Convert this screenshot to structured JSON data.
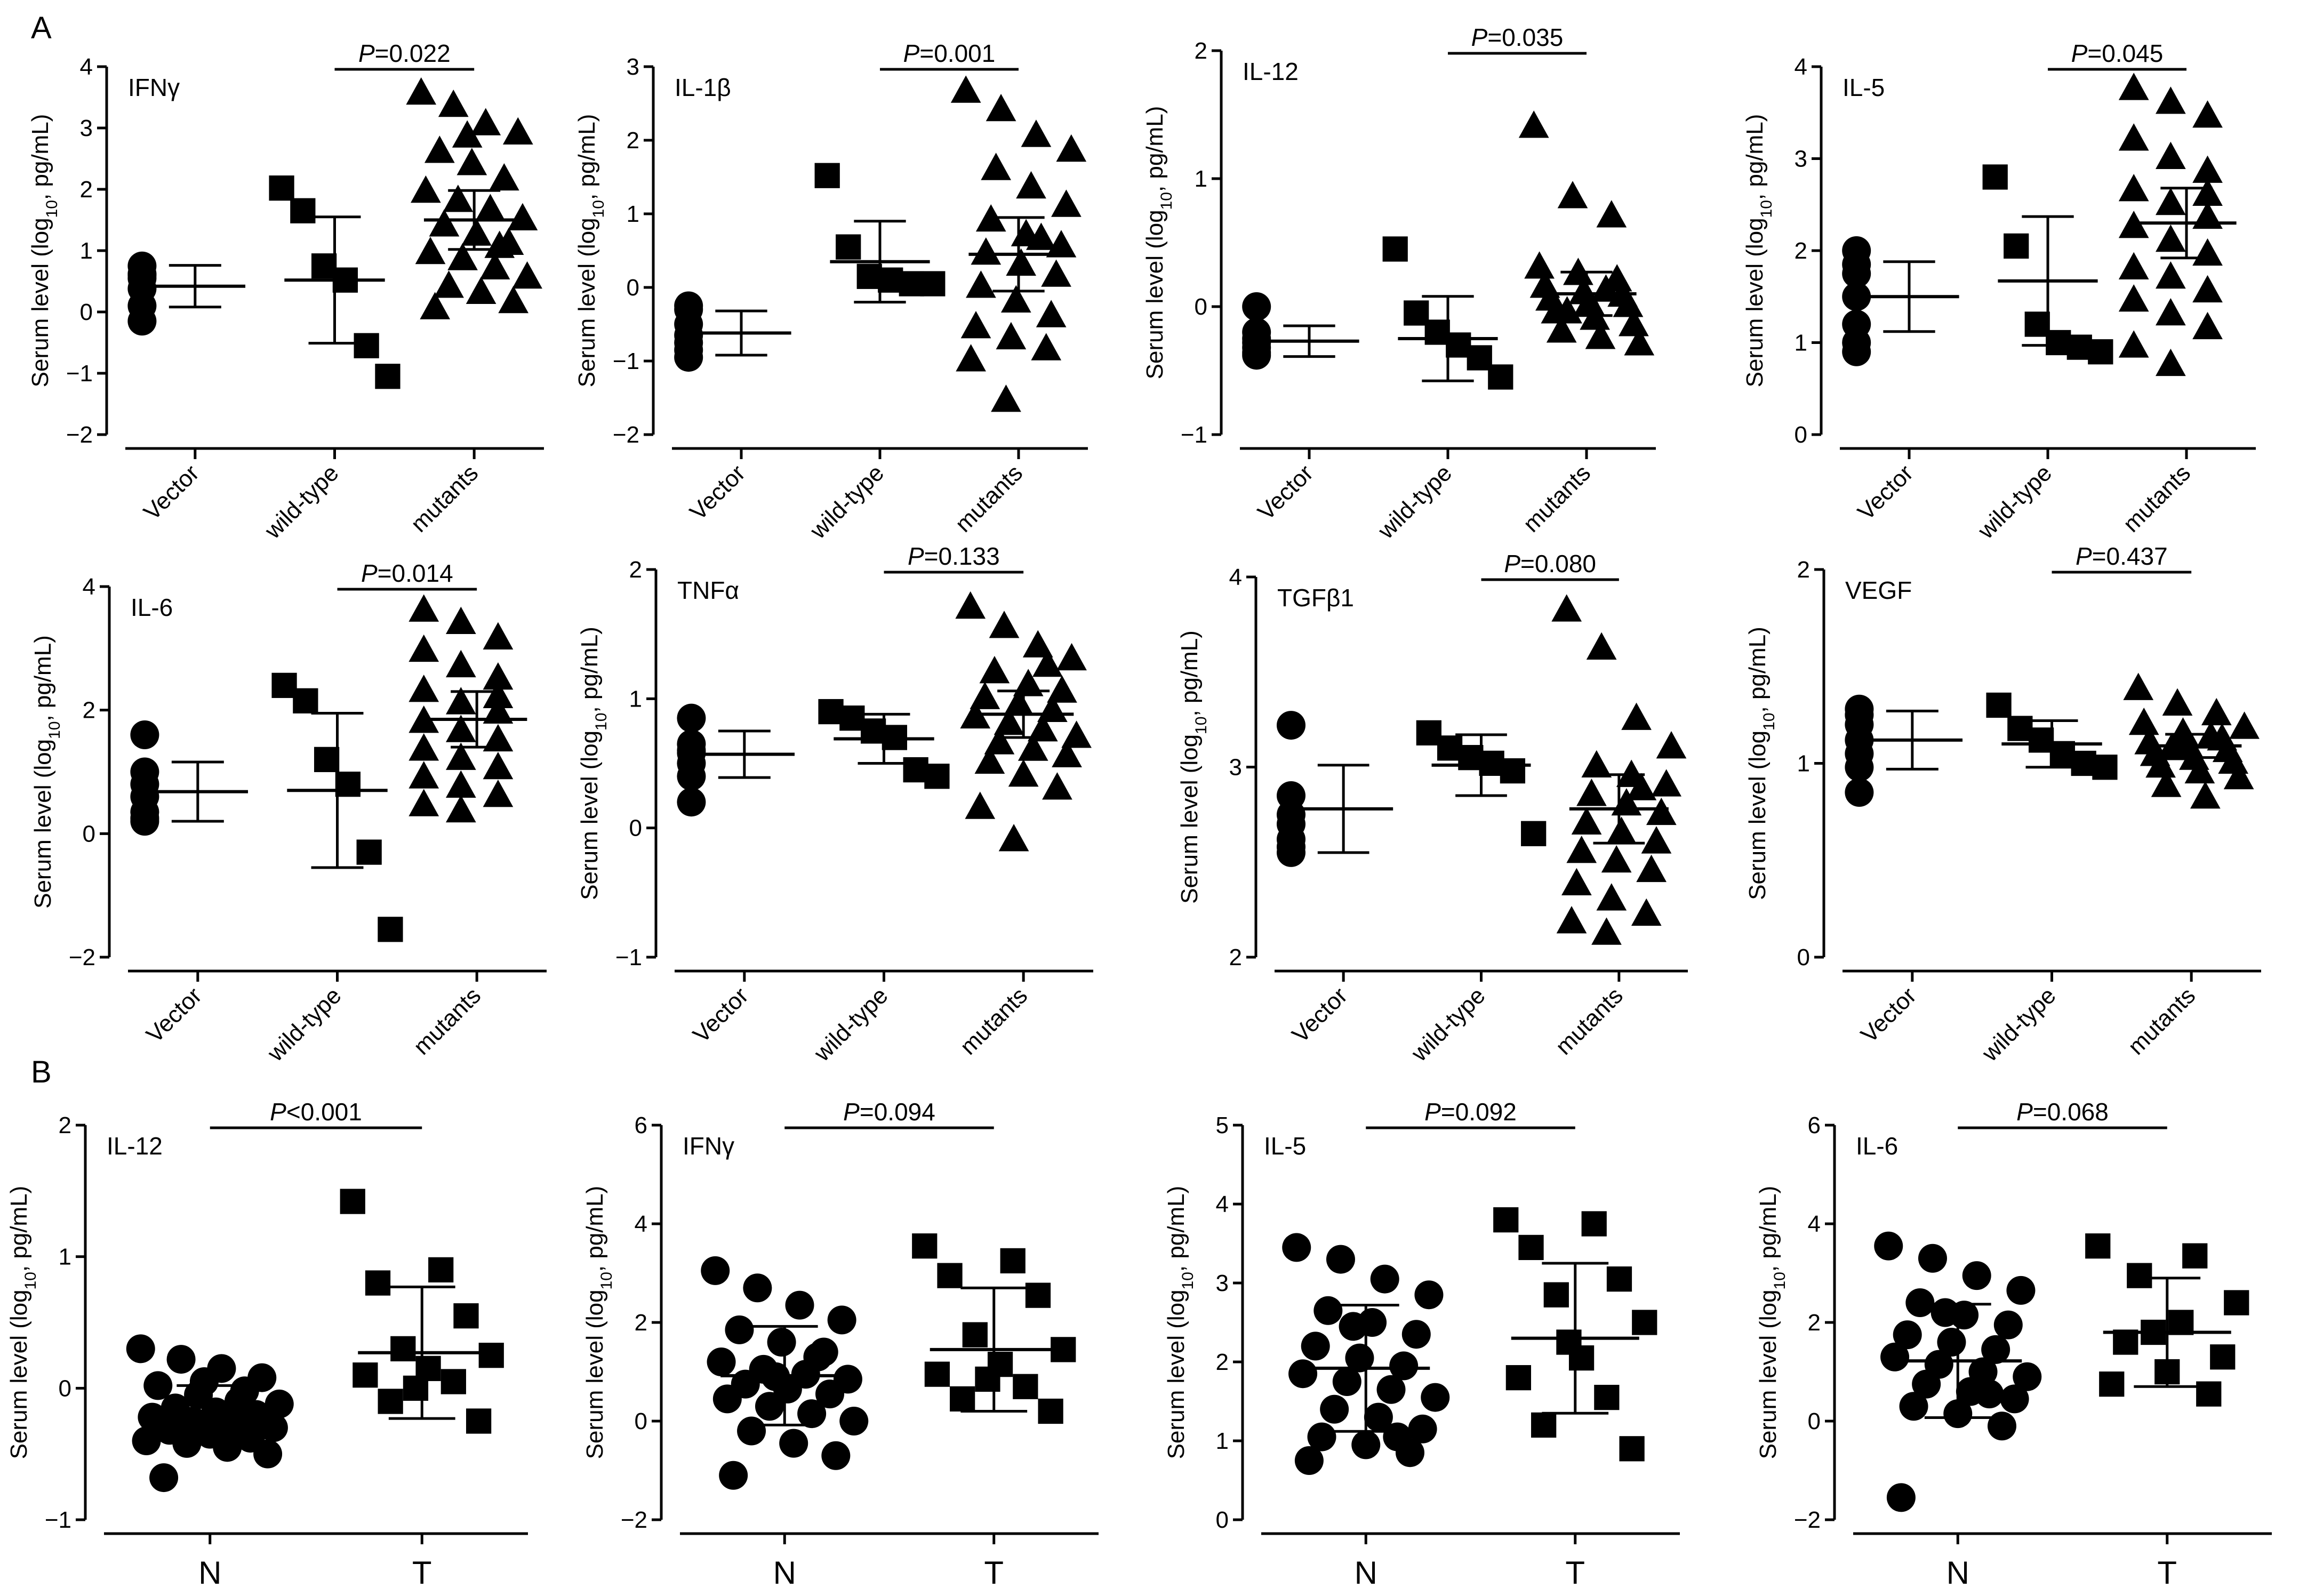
{
  "panel_letters": [
    "A",
    "B"
  ],
  "axis_label_main": "Serum level (log",
  "axis_label_sub": "10",
  "axis_label_tail": ", pg/mL)",
  "colors": {
    "ink": "#000000",
    "background": "#ffffff"
  },
  "chart_data": [
    {
      "panel": "A",
      "type": "scatter",
      "title": "IFNγ",
      "ylabel": "Serum level (log10, pg/mL)",
      "ylim": [
        -2,
        4
      ],
      "yticks": [
        -2,
        -1,
        0,
        1,
        2,
        3,
        4
      ],
      "yticklabels": [
        "−2",
        "−1",
        "0",
        "1",
        "2",
        "3",
        "4"
      ],
      "categories": [
        "Vector",
        "wild-type",
        "mutants"
      ],
      "markers": [
        "circle",
        "square",
        "triangle"
      ],
      "p_label": "P",
      "p_text": "=0.022",
      "p_groups": [
        1,
        2
      ],
      "series": [
        {
          "name": "Vector",
          "mean": 0.42,
          "sd": 0.34,
          "values": [
            0.75,
            0.55,
            0.6,
            0.38,
            0.1,
            -0.15,
            0.62
          ]
        },
        {
          "name": "wild-type",
          "mean": 0.52,
          "sd": 1.03,
          "values": [
            2.02,
            1.65,
            0.75,
            0.52,
            -0.55,
            -1.05
          ]
        },
        {
          "name": "mutants",
          "mean": 1.5,
          "sd": 0.48,
          "values": [
            3.55,
            3.35,
            3.05,
            2.9,
            2.6,
            2.4,
            2.15,
            1.95,
            1.8,
            1.65,
            1.5,
            1.4,
            1.25,
            1.1,
            0.95,
            0.85,
            0.7,
            0.55,
            0.4,
            0.3,
            0.15,
            0.05,
            2.85,
            1.05
          ]
        }
      ]
    },
    {
      "panel": "A",
      "type": "scatter",
      "title": "IL-1β",
      "ylabel": "Serum level (log10, pg/mL)",
      "ylim": [
        -2,
        3
      ],
      "yticks": [
        -2,
        -1,
        0,
        1,
        2,
        3
      ],
      "yticklabels": [
        "−2",
        "−1",
        "0",
        "1",
        "2",
        "3"
      ],
      "categories": [
        "Vector",
        "wild-type",
        "mutants"
      ],
      "markers": [
        "circle",
        "square",
        "triangle"
      ],
      "p_label": "P",
      "p_text": "=0.001",
      "p_groups": [
        1,
        2
      ],
      "series": [
        {
          "name": "Vector",
          "mean": -0.62,
          "sd": 0.3,
          "values": [
            -0.25,
            -0.3,
            -0.5,
            -0.65,
            -0.75,
            -0.85,
            -0.95
          ]
        },
        {
          "name": "wild-type",
          "mean": 0.35,
          "sd": 0.55,
          "values": [
            1.52,
            0.55,
            0.15,
            0.1,
            0.05,
            0.05
          ]
        },
        {
          "name": "mutants",
          "mean": 0.45,
          "sd": 0.5,
          "values": [
            2.65,
            2.4,
            2.05,
            1.85,
            1.6,
            1.35,
            1.1,
            0.9,
            0.7,
            0.55,
            0.45,
            0.3,
            0.15,
            0.0,
            -0.2,
            -0.4,
            -0.55,
            -0.7,
            -0.85,
            -1.0,
            -1.55,
            0.65
          ]
        }
      ]
    },
    {
      "panel": "A",
      "type": "scatter",
      "title": "IL-12",
      "ylabel": "Serum level (log10, pg/mL)",
      "ylim": [
        -1,
        2
      ],
      "yticks": [
        -1,
        0,
        1,
        2
      ],
      "yticklabels": [
        "−1",
        "0",
        "1",
        "2"
      ],
      "categories": [
        "Vector",
        "wild-type",
        "mutants"
      ],
      "markers": [
        "circle",
        "square",
        "triangle"
      ],
      "p_label": "P",
      "p_text": "=0.035",
      "p_groups": [
        1,
        2
      ],
      "series": [
        {
          "name": "Vector",
          "mean": -0.27,
          "sd": 0.12,
          "values": [
            0.0,
            -0.2,
            -0.25,
            -0.28,
            -0.32,
            -0.36,
            -0.38
          ]
        },
        {
          "name": "wild-type",
          "mean": -0.25,
          "sd": 0.33,
          "values": [
            0.45,
            -0.05,
            -0.2,
            -0.3,
            -0.4,
            -0.55
          ]
        },
        {
          "name": "mutants",
          "mean": 0.1,
          "sd": 0.17,
          "values": [
            1.4,
            0.85,
            0.7,
            0.3,
            0.25,
            0.2,
            0.15,
            0.1,
            0.08,
            0.05,
            0.02,
            0.0,
            -0.05,
            -0.1,
            -0.15,
            -0.2,
            -0.25,
            -0.3,
            -0.05,
            0.12
          ]
        }
      ]
    },
    {
      "panel": "A",
      "type": "scatter",
      "title": "IL-5",
      "ylabel": "Serum level (log10, pg/mL)",
      "ylim": [
        0,
        4
      ],
      "yticks": [
        0,
        1,
        2,
        3,
        4
      ],
      "yticklabels": [
        "0",
        "1",
        "2",
        "3",
        "4"
      ],
      "categories": [
        "Vector",
        "wild-type",
        "mutants"
      ],
      "markers": [
        "circle",
        "square",
        "triangle"
      ],
      "p_label": "P",
      "p_text": "=0.045",
      "p_groups": [
        1,
        2
      ],
      "series": [
        {
          "name": "Vector",
          "mean": 1.5,
          "sd": 0.38,
          "values": [
            2.0,
            1.85,
            1.75,
            1.5,
            1.2,
            1.0,
            0.9
          ]
        },
        {
          "name": "wild-type",
          "mean": 1.67,
          "sd": 0.7,
          "values": [
            2.8,
            2.05,
            1.2,
            1.0,
            0.95,
            0.9
          ]
        },
        {
          "name": "mutants",
          "mean": 2.3,
          "sd": 0.38,
          "values": [
            3.75,
            3.6,
            3.45,
            3.2,
            3.0,
            2.85,
            2.65,
            2.5,
            2.35,
            2.25,
            2.1,
            1.95,
            1.8,
            1.7,
            1.55,
            1.45,
            1.3,
            1.15,
            0.95,
            0.75,
            2.6
          ]
        }
      ]
    },
    {
      "panel": "A",
      "type": "scatter",
      "title": "IL-6",
      "ylabel": "Serum level (log10, pg/mL)",
      "ylim": [
        -2,
        4
      ],
      "yticks": [
        -2,
        0,
        2,
        4
      ],
      "yticklabels": [
        "−2",
        "0",
        "2",
        "4"
      ],
      "categories": [
        "Vector",
        "wild-type",
        "mutants"
      ],
      "markers": [
        "circle",
        "square",
        "triangle"
      ],
      "p_label": "P",
      "p_text": "=0.014",
      "p_groups": [
        1,
        2
      ],
      "series": [
        {
          "name": "Vector",
          "mean": 0.68,
          "sd": 0.48,
          "values": [
            1.6,
            1.0,
            0.8,
            0.6,
            0.35,
            0.25,
            0.2
          ]
        },
        {
          "name": "wild-type",
          "mean": 0.7,
          "sd": 1.25,
          "values": [
            2.4,
            2.15,
            1.2,
            0.8,
            -0.3,
            -1.55
          ]
        },
        {
          "name": "mutants",
          "mean": 1.85,
          "sd": 0.45,
          "values": [
            3.6,
            3.4,
            3.15,
            2.95,
            2.7,
            2.5,
            2.3,
            2.1,
            1.95,
            1.8,
            1.65,
            1.5,
            1.35,
            1.2,
            1.05,
            0.9,
            0.75,
            0.6,
            0.45,
            0.35,
            2.2
          ]
        }
      ]
    },
    {
      "panel": "A",
      "type": "scatter",
      "title": "TNFα",
      "ylabel": "Serum level (log10, pg/mL)",
      "ylim": [
        -1,
        2
      ],
      "yticks": [
        -1,
        0,
        1,
        2
      ],
      "yticklabels": [
        "−1",
        "0",
        "1",
        "2"
      ],
      "categories": [
        "Vector",
        "wild-type",
        "mutants"
      ],
      "markers": [
        "circle",
        "square",
        "triangle"
      ],
      "p_label": "P",
      "p_text": "=0.133",
      "p_groups": [
        1,
        2
      ],
      "series": [
        {
          "name": "Vector",
          "mean": 0.57,
          "sd": 0.18,
          "values": [
            0.85,
            0.65,
            0.6,
            0.58,
            0.5,
            0.4,
            0.2
          ]
        },
        {
          "name": "wild-type",
          "mean": 0.69,
          "sd": 0.19,
          "values": [
            0.9,
            0.85,
            0.75,
            0.7,
            0.45,
            0.4
          ]
        },
        {
          "name": "mutants",
          "mean": 0.88,
          "sd": 0.18,
          "values": [
            1.7,
            1.55,
            1.4,
            1.3,
            1.2,
            1.1,
            1.05,
            1.0,
            0.95,
            0.9,
            0.85,
            0.8,
            0.75,
            0.7,
            0.65,
            0.6,
            0.55,
            0.5,
            0.4,
            0.3,
            0.15,
            -0.1,
            1.25
          ]
        }
      ]
    },
    {
      "panel": "A",
      "type": "scatter",
      "title": "TGFβ1",
      "ylabel": "Serum level (log10, pg/mL)",
      "ylim": [
        2,
        4
      ],
      "yticks": [
        2,
        3,
        4
      ],
      "yticklabels": [
        "2",
        "3",
        "4"
      ],
      "categories": [
        "Vector",
        "wild-type",
        "mutants"
      ],
      "markers": [
        "circle",
        "square",
        "triangle"
      ],
      "p_label": "P",
      "p_text": "=0.080",
      "p_groups": [
        1,
        2
      ],
      "series": [
        {
          "name": "Vector",
          "mean": 2.78,
          "sd": 0.23,
          "values": [
            3.22,
            2.85,
            2.75,
            2.7,
            2.62,
            2.58,
            2.55
          ]
        },
        {
          "name": "wild-type",
          "mean": 3.01,
          "sd": 0.16,
          "values": [
            3.18,
            3.1,
            3.05,
            3.02,
            2.98,
            2.65
          ]
        },
        {
          "name": "mutants",
          "mean": 2.78,
          "sd": 0.18,
          "values": [
            3.82,
            3.62,
            3.25,
            3.1,
            3.0,
            2.95,
            2.9,
            2.85,
            2.8,
            2.75,
            2.7,
            2.65,
            2.6,
            2.55,
            2.5,
            2.45,
            2.38,
            2.3,
            2.22,
            2.18,
            2.12,
            2.88
          ]
        }
      ]
    },
    {
      "panel": "A",
      "type": "scatter",
      "title": "VEGF",
      "ylabel": "Serum level (log10, pg/mL)",
      "ylim": [
        0,
        2
      ],
      "yticks": [
        0,
        1,
        2
      ],
      "yticklabels": [
        "0",
        "1",
        "2"
      ],
      "categories": [
        "Vector",
        "wild-type",
        "mutants"
      ],
      "markers": [
        "circle",
        "square",
        "triangle"
      ],
      "p_label": "P",
      "p_text": "=0.437",
      "p_groups": [
        1,
        2
      ],
      "series": [
        {
          "name": "Vector",
          "mean": 1.12,
          "sd": 0.15,
          "values": [
            1.28,
            1.25,
            1.2,
            1.12,
            1.05,
            0.98,
            0.85
          ]
        },
        {
          "name": "wild-type",
          "mean": 1.1,
          "sd": 0.12,
          "values": [
            1.3,
            1.18,
            1.12,
            1.05,
            1.0,
            0.98
          ]
        },
        {
          "name": "mutants",
          "mean": 1.09,
          "sd": 0.06,
          "values": [
            1.38,
            1.3,
            1.25,
            1.2,
            1.15,
            1.12,
            1.1,
            1.08,
            1.06,
            1.04,
            1.02,
            1.0,
            0.98,
            0.95,
            0.92,
            0.88,
            0.82,
            1.18,
            1.07,
            1.13
          ]
        }
      ]
    },
    {
      "panel": "B",
      "type": "scatter",
      "title": "IL-12",
      "ylabel": "Serum level (log10, pg/mL)",
      "ylim": [
        -1,
        2
      ],
      "yticks": [
        -1,
        0,
        1,
        2
      ],
      "yticklabels": [
        "−1",
        "0",
        "1",
        "2"
      ],
      "categories": [
        "N",
        "T"
      ],
      "markers": [
        "circle",
        "square"
      ],
      "p_label": "P",
      "p_text": "<0.001",
      "p_groups": [
        0,
        1
      ],
      "series": [
        {
          "name": "N",
          "mean": -0.2,
          "sd": 0.22,
          "values": [
            0.3,
            0.22,
            0.15,
            0.08,
            0.02,
            -0.05,
            -0.1,
            -0.12,
            -0.15,
            -0.18,
            -0.2,
            -0.22,
            -0.25,
            -0.28,
            -0.3,
            -0.32,
            -0.35,
            -0.38,
            -0.4,
            -0.42,
            -0.45,
            -0.5,
            -0.68,
            0.05,
            -0.02
          ]
        },
        {
          "name": "T",
          "mean": 0.27,
          "sd": 0.5,
          "values": [
            1.42,
            0.9,
            0.8,
            0.55,
            0.3,
            0.25,
            0.15,
            0.1,
            0.05,
            -0.1,
            -0.25,
            0.0
          ]
        }
      ]
    },
    {
      "panel": "B",
      "type": "scatter",
      "title": "IFNγ",
      "ylabel": "Serum level (log10, pg/mL)",
      "ylim": [
        -2,
        6
      ],
      "yticks": [
        -2,
        0,
        2,
        4,
        6
      ],
      "yticklabels": [
        "−2",
        "0",
        "2",
        "4",
        "6"
      ],
      "categories": [
        "N",
        "T"
      ],
      "markers": [
        "circle",
        "square"
      ],
      "p_label": "P",
      "p_text": "=0.094",
      "p_groups": [
        0,
        1
      ],
      "series": [
        {
          "name": "N",
          "mean": 0.92,
          "sd": 1.0,
          "values": [
            3.05,
            2.7,
            2.35,
            2.05,
            1.85,
            1.6,
            1.4,
            1.2,
            1.05,
            0.95,
            0.85,
            0.75,
            0.65,
            0.55,
            0.45,
            0.3,
            0.15,
            0.0,
            -0.2,
            -0.45,
            -0.7,
            -1.1,
            0.9,
            1.3
          ]
        },
        {
          "name": "T",
          "mean": 1.45,
          "sd": 1.25,
          "values": [
            3.55,
            3.25,
            2.95,
            2.55,
            1.75,
            1.45,
            1.15,
            0.95,
            0.7,
            0.45,
            0.2,
            0.85
          ]
        }
      ]
    },
    {
      "panel": "B",
      "type": "scatter",
      "title": "IL-5",
      "ylabel": "Serum level (log10, pg/mL)",
      "ylim": [
        0,
        5
      ],
      "yticks": [
        0,
        1,
        2,
        3,
        4,
        5
      ],
      "yticklabels": [
        "0",
        "1",
        "2",
        "3",
        "4",
        "5"
      ],
      "categories": [
        "N",
        "T"
      ],
      "markers": [
        "circle",
        "square"
      ],
      "p_label": "P",
      "p_text": "=0.092",
      "p_groups": [
        0,
        1
      ],
      "series": [
        {
          "name": "N",
          "mean": 1.92,
          "sd": 0.8,
          "values": [
            3.45,
            3.3,
            3.05,
            2.85,
            2.65,
            2.5,
            2.35,
            2.2,
            2.05,
            1.95,
            1.85,
            1.75,
            1.65,
            1.55,
            1.4,
            1.3,
            1.15,
            1.05,
            0.95,
            0.85,
            0.75,
            2.45,
            1.05
          ]
        },
        {
          "name": "T",
          "mean": 2.3,
          "sd": 0.95,
          "values": [
            3.8,
            3.75,
            3.45,
            3.05,
            2.85,
            2.5,
            2.05,
            1.8,
            1.55,
            1.2,
            0.9,
            2.25
          ]
        }
      ]
    },
    {
      "panel": "B",
      "type": "scatter",
      "title": "IL-6",
      "ylabel": "Serum level (log10, pg/mL)",
      "ylim": [
        -2,
        6
      ],
      "yticks": [
        -2,
        0,
        2,
        4,
        6
      ],
      "yticklabels": [
        "−2",
        "0",
        "2",
        "4",
        "6"
      ],
      "categories": [
        "N",
        "T"
      ],
      "markers": [
        "circle",
        "square"
      ],
      "p_label": "P",
      "p_text": "=0.068",
      "p_groups": [
        0,
        1
      ],
      "series": [
        {
          "name": "N",
          "mean": 1.22,
          "sd": 1.15,
          "values": [
            3.55,
            3.3,
            2.95,
            2.65,
            2.4,
            2.15,
            1.95,
            1.75,
            1.6,
            1.45,
            1.3,
            1.15,
            1.0,
            0.9,
            0.75,
            0.6,
            0.45,
            0.3,
            0.15,
            -0.1,
            -1.55,
            2.2,
            0.55
          ]
        },
        {
          "name": "T",
          "mean": 1.8,
          "sd": 1.1,
          "values": [
            3.55,
            3.35,
            2.95,
            2.4,
            2.0,
            1.6,
            1.3,
            1.0,
            0.75,
            0.55,
            1.8
          ]
        }
      ]
    }
  ]
}
